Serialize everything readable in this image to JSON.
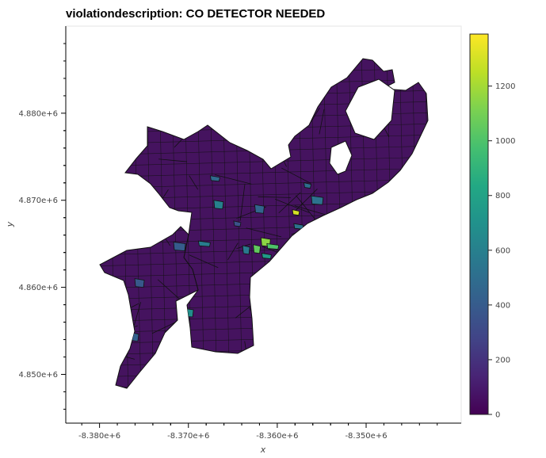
{
  "title": "violationdescription: CO DETECTOR NEEDED",
  "chart_data": {
    "type": "choropleth",
    "title": "violationdescription: CO DETECTOR NEEDED",
    "xlabel": "x",
    "ylabel": "y",
    "x_ticks": [
      "-8.380e+6",
      "-8.370e+6",
      "-8.360e+6",
      "-8.350e+6"
    ],
    "x_tick_values": [
      -8380000,
      -8370000,
      -8360000,
      -8350000
    ],
    "y_ticks": [
      "4.880e+6",
      "4.870e+6",
      "4.860e+6",
      "4.850e+6"
    ],
    "y_tick_values": [
      4880000,
      4870000,
      4860000,
      4850000
    ],
    "xlim": [
      -8383800,
      -8339300
    ],
    "ylim": [
      4844400,
      4890000
    ],
    "colorbar": {
      "ticks": [
        0,
        200,
        400,
        600,
        800,
        1000,
        1200
      ],
      "range": [
        0,
        1390
      ],
      "colormap": "viridis"
    },
    "highlight_regions": [
      {
        "x": -8357900,
        "y": 4868600,
        "value": 1300
      },
      {
        "x": -8361300,
        "y": 4865200,
        "value": 1150
      },
      {
        "x": -8360500,
        "y": 4864700,
        "value": 1000
      },
      {
        "x": -8362300,
        "y": 4864400,
        "value": 1050
      },
      {
        "x": -8361200,
        "y": 4863600,
        "value": 750
      },
      {
        "x": -8370100,
        "y": 4857100,
        "value": 680
      },
      {
        "x": -8376800,
        "y": 4857300,
        "value": 650
      },
      {
        "x": -8366600,
        "y": 4869500,
        "value": 600
      },
      {
        "x": -8368200,
        "y": 4865000,
        "value": 580
      },
      {
        "x": -8363500,
        "y": 4864300,
        "value": 560
      },
      {
        "x": -8357600,
        "y": 4867000,
        "value": 520
      },
      {
        "x": -8355500,
        "y": 4870000,
        "value": 520
      },
      {
        "x": -8356600,
        "y": 4871700,
        "value": 500
      },
      {
        "x": -8362000,
        "y": 4869000,
        "value": 450
      },
      {
        "x": -8353300,
        "y": 4884600,
        "value": 400
      },
      {
        "x": -8376000,
        "y": 4854300,
        "value": 420
      },
      {
        "x": -8367000,
        "y": 4872500,
        "value": 480
      },
      {
        "x": -8371000,
        "y": 4864700,
        "value": 400
      },
      {
        "x": -8364500,
        "y": 4867300,
        "value": 350
      },
      {
        "x": -8375500,
        "y": 4860500,
        "value": 380
      }
    ]
  }
}
